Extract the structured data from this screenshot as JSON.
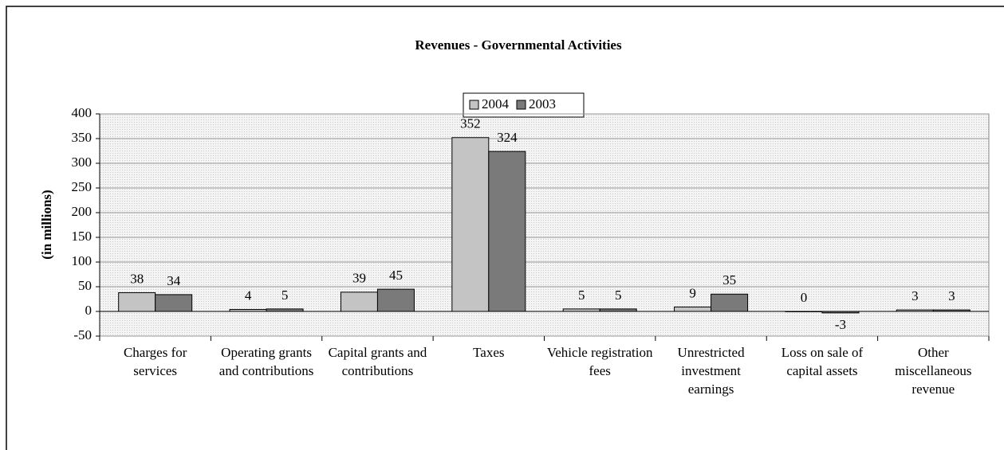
{
  "chart_data": {
    "type": "bar",
    "title": "Revenues - Governmental Activities",
    "y_label": "(in millions)",
    "categories": [
      "Charges for services",
      "Operating grants and contributions",
      "Capital grants and contributions",
      "Taxes",
      "Vehicle registration fees",
      "Unrestricted investment earnings",
      "Loss on sale of capital assets",
      "Other miscellaneous revenue"
    ],
    "series": [
      {
        "name": "2004",
        "color": "#c4c4c4",
        "values": [
          38,
          4,
          39,
          352,
          5,
          9,
          0,
          3
        ]
      },
      {
        "name": "2003",
        "color": "#7a7a7a",
        "values": [
          34,
          5,
          45,
          324,
          5,
          35,
          -3,
          3
        ]
      }
    ],
    "ylim": [
      -50,
      400
    ],
    "yticks": [
      -50,
      0,
      50,
      100,
      150,
      200,
      250,
      300,
      350,
      400
    ],
    "grid": true,
    "legend": "top"
  }
}
